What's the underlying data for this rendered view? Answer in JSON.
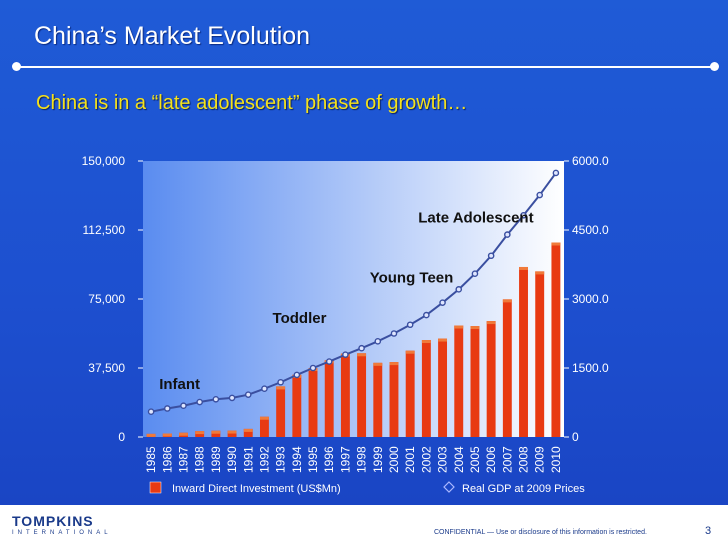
{
  "slide": {
    "title": "China’s Market Evolution",
    "subtitle": "China is in a “late adolescent” phase of growth…"
  },
  "footer": {
    "logo_main": "TOMPKINS",
    "logo_sub": "INTERNATIONAL",
    "confidential": "CONFIDENTIAL — Use or disclosure of this information is restricted.",
    "page_number": "3"
  },
  "colors": {
    "bar": "#e83a12",
    "bar_top": "#f07a3a",
    "line": "#3a4fa0",
    "plot_left": "#5a8cf0",
    "plot_right": "#ffffff"
  },
  "chart_data": {
    "type": "bar",
    "title": "",
    "categories": [
      "1985",
      "1986",
      "1987",
      "1988",
      "1989",
      "1990",
      "1991",
      "1992",
      "1993",
      "1994",
      "1995",
      "1996",
      "1997",
      "1998",
      "1999",
      "2000",
      "2001",
      "2002",
      "2003",
      "2004",
      "2005",
      "2006",
      "2007",
      "2008",
      "2009",
      "2010"
    ],
    "series": [
      {
        "name": "Inward Direct Investment (US$Mn)",
        "type": "bar",
        "axis": "left",
        "values": [
          1700,
          1900,
          2300,
          3200,
          3400,
          3500,
          4400,
          11000,
          27500,
          33800,
          37500,
          41700,
          45300,
          45500,
          40300,
          40700,
          46900,
          52700,
          53500,
          60600,
          60300,
          63000,
          74800,
          92400,
          90000,
          105700
        ]
      },
      {
        "name": "Real GDP at 2009 Prices",
        "type": "line",
        "axis": "right",
        "values": [
          550,
          620,
          680,
          760,
          820,
          850,
          920,
          1050,
          1190,
          1350,
          1500,
          1640,
          1790,
          1930,
          2080,
          2250,
          2440,
          2650,
          2920,
          3210,
          3550,
          3940,
          4400,
          4820,
          5260,
          5740
        ]
      }
    ],
    "y_left": {
      "min": 0,
      "max": 150000,
      "ticks": [
        "0",
        "37,500",
        "75,000",
        "112,500",
        "150,000"
      ]
    },
    "y_right": {
      "min": 0,
      "max": 6000,
      "ticks": [
        "0",
        "1500.0",
        "3000.0",
        "4500.0",
        "6000.0"
      ]
    },
    "annotations": [
      {
        "text": "Infant",
        "category": "1986",
        "value": 26000
      },
      {
        "text": "Toddler",
        "category": "1993",
        "value": 62000
      },
      {
        "text": "Young Teen",
        "category": "1999",
        "value": 84000
      },
      {
        "text": "Late Adolescent",
        "category": "2002",
        "value": 116500
      }
    ],
    "legend": [
      "Inward Direct Investment (US$Mn)",
      "Real GDP at 2009 Prices"
    ]
  }
}
